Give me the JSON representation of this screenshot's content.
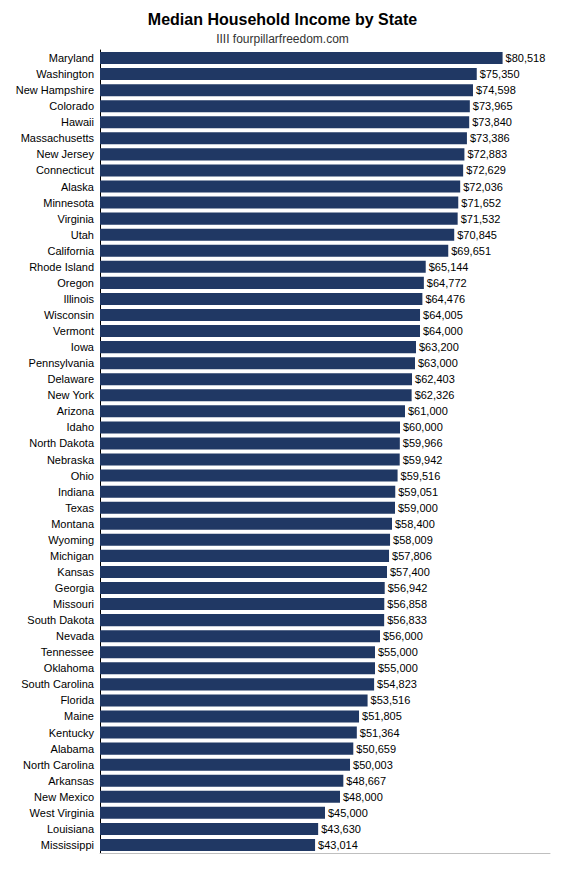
{
  "chart_data": {
    "type": "bar",
    "orientation": "horizontal",
    "title": "Median Household Income by State",
    "subtitle": "IIII fourpillarfreedom.com",
    "categories": [
      "Maryland",
      "Washington",
      "New Hampshire",
      "Colorado",
      "Hawaii",
      "Massachusetts",
      "New Jersey",
      "Connecticut",
      "Alaska",
      "Minnesota",
      "Virginia",
      "Utah",
      "California",
      "Rhode Island",
      "Oregon",
      "Illinois",
      "Wisconsin",
      "Vermont",
      "Iowa",
      "Pennsylvania",
      "Delaware",
      "New York",
      "Arizona",
      "Idaho",
      "North Dakota",
      "Nebraska",
      "Ohio",
      "Indiana",
      "Texas",
      "Montana",
      "Wyoming",
      "Michigan",
      "Kansas",
      "Georgia",
      "Missouri",
      "South Dakota",
      "Nevada",
      "Tennessee",
      "Oklahoma",
      "South Carolina",
      "Florida",
      "Maine",
      "Kentucky",
      "Alabama",
      "North Carolina",
      "Arkansas",
      "New Mexico",
      "West Virginia",
      "Louisiana",
      "Mississippi"
    ],
    "values": [
      80518,
      75350,
      74598,
      73965,
      73840,
      73386,
      72883,
      72629,
      72036,
      71652,
      71532,
      70845,
      69651,
      65144,
      64772,
      64476,
      64005,
      64000,
      63200,
      63000,
      62403,
      62326,
      61000,
      60000,
      59966,
      59942,
      59516,
      59051,
      59000,
      58400,
      58009,
      57806,
      57400,
      56942,
      56858,
      56833,
      56000,
      55000,
      55000,
      54823,
      53516,
      51805,
      51364,
      50659,
      50003,
      48667,
      48000,
      45000,
      43630,
      43014
    ],
    "value_labels": [
      "$80,518",
      "$75,350",
      "$74,598",
      "$73,965",
      "$73,840",
      "$73,386",
      "$72,883",
      "$72,629",
      "$72,036",
      "$71,652",
      "$71,532",
      "$70,845",
      "$69,651",
      "$65,144",
      "$64,772",
      "$64,476",
      "$64,005",
      "$64,000",
      "$63,200",
      "$63,000",
      "$62,403",
      "$62,326",
      "$61,000",
      "$60,000",
      "$59,966",
      "$59,942",
      "$59,516",
      "$59,051",
      "$59,000",
      "$58,400",
      "$58,009",
      "$57,806",
      "$57,400",
      "$56,942",
      "$56,858",
      "$56,833",
      "$56,000",
      "$55,000",
      "$55,000",
      "$54,823",
      "$53,516",
      "$51,805",
      "$51,364",
      "$50,659",
      "$50,003",
      "$48,667",
      "$48,000",
      "$45,000",
      "$43,630",
      "$43,014"
    ],
    "color": "#203864",
    "xlim": [
      0,
      90000
    ],
    "data_labels": true,
    "tick_labels": "y",
    "grid": false
  }
}
